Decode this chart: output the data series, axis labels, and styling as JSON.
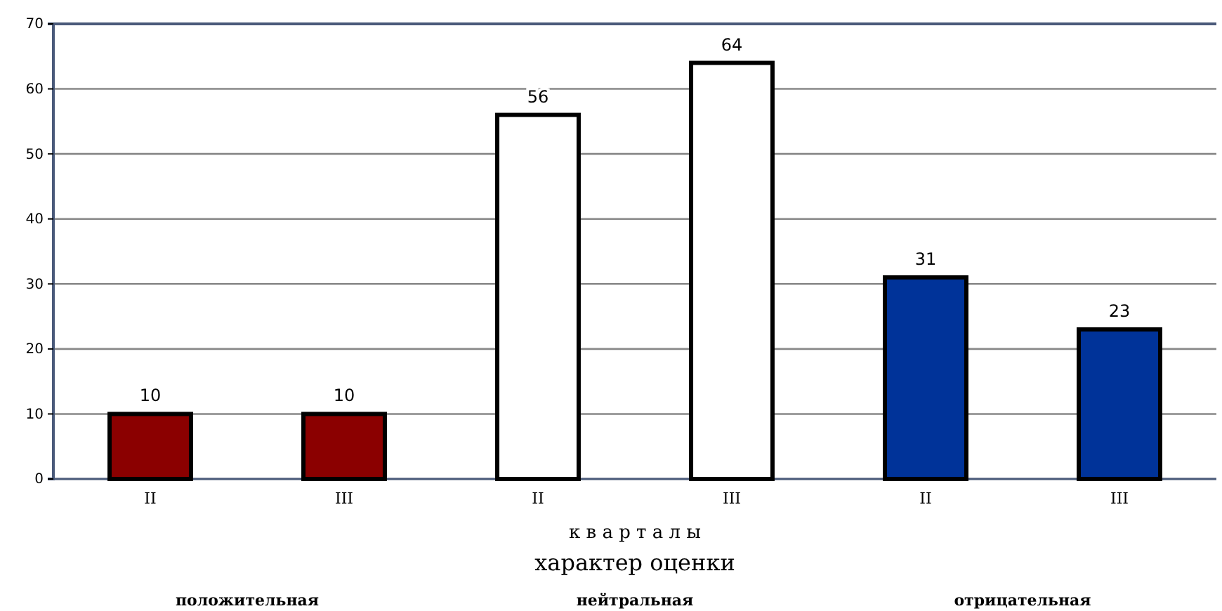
{
  "chart_data": {
    "type": "bar",
    "categories": [
      "II",
      "III",
      "II",
      "III",
      "II",
      "III"
    ],
    "values": [
      10,
      10,
      56,
      64,
      31,
      23
    ],
    "colors": [
      "#8b0000",
      "#8b0000",
      "#ffffff",
      "#ffffff",
      "#003399",
      "#003399"
    ],
    "ylim": [
      0,
      70
    ],
    "yticks": [
      0,
      10,
      20,
      30,
      40,
      50,
      60,
      70
    ],
    "grid": "y",
    "data_labels": true,
    "xlabel": "к в а р т а л ы",
    "annotations": [
      "характер оценки",
      "положительная",
      "нейтральная",
      "отрицательная"
    ]
  }
}
